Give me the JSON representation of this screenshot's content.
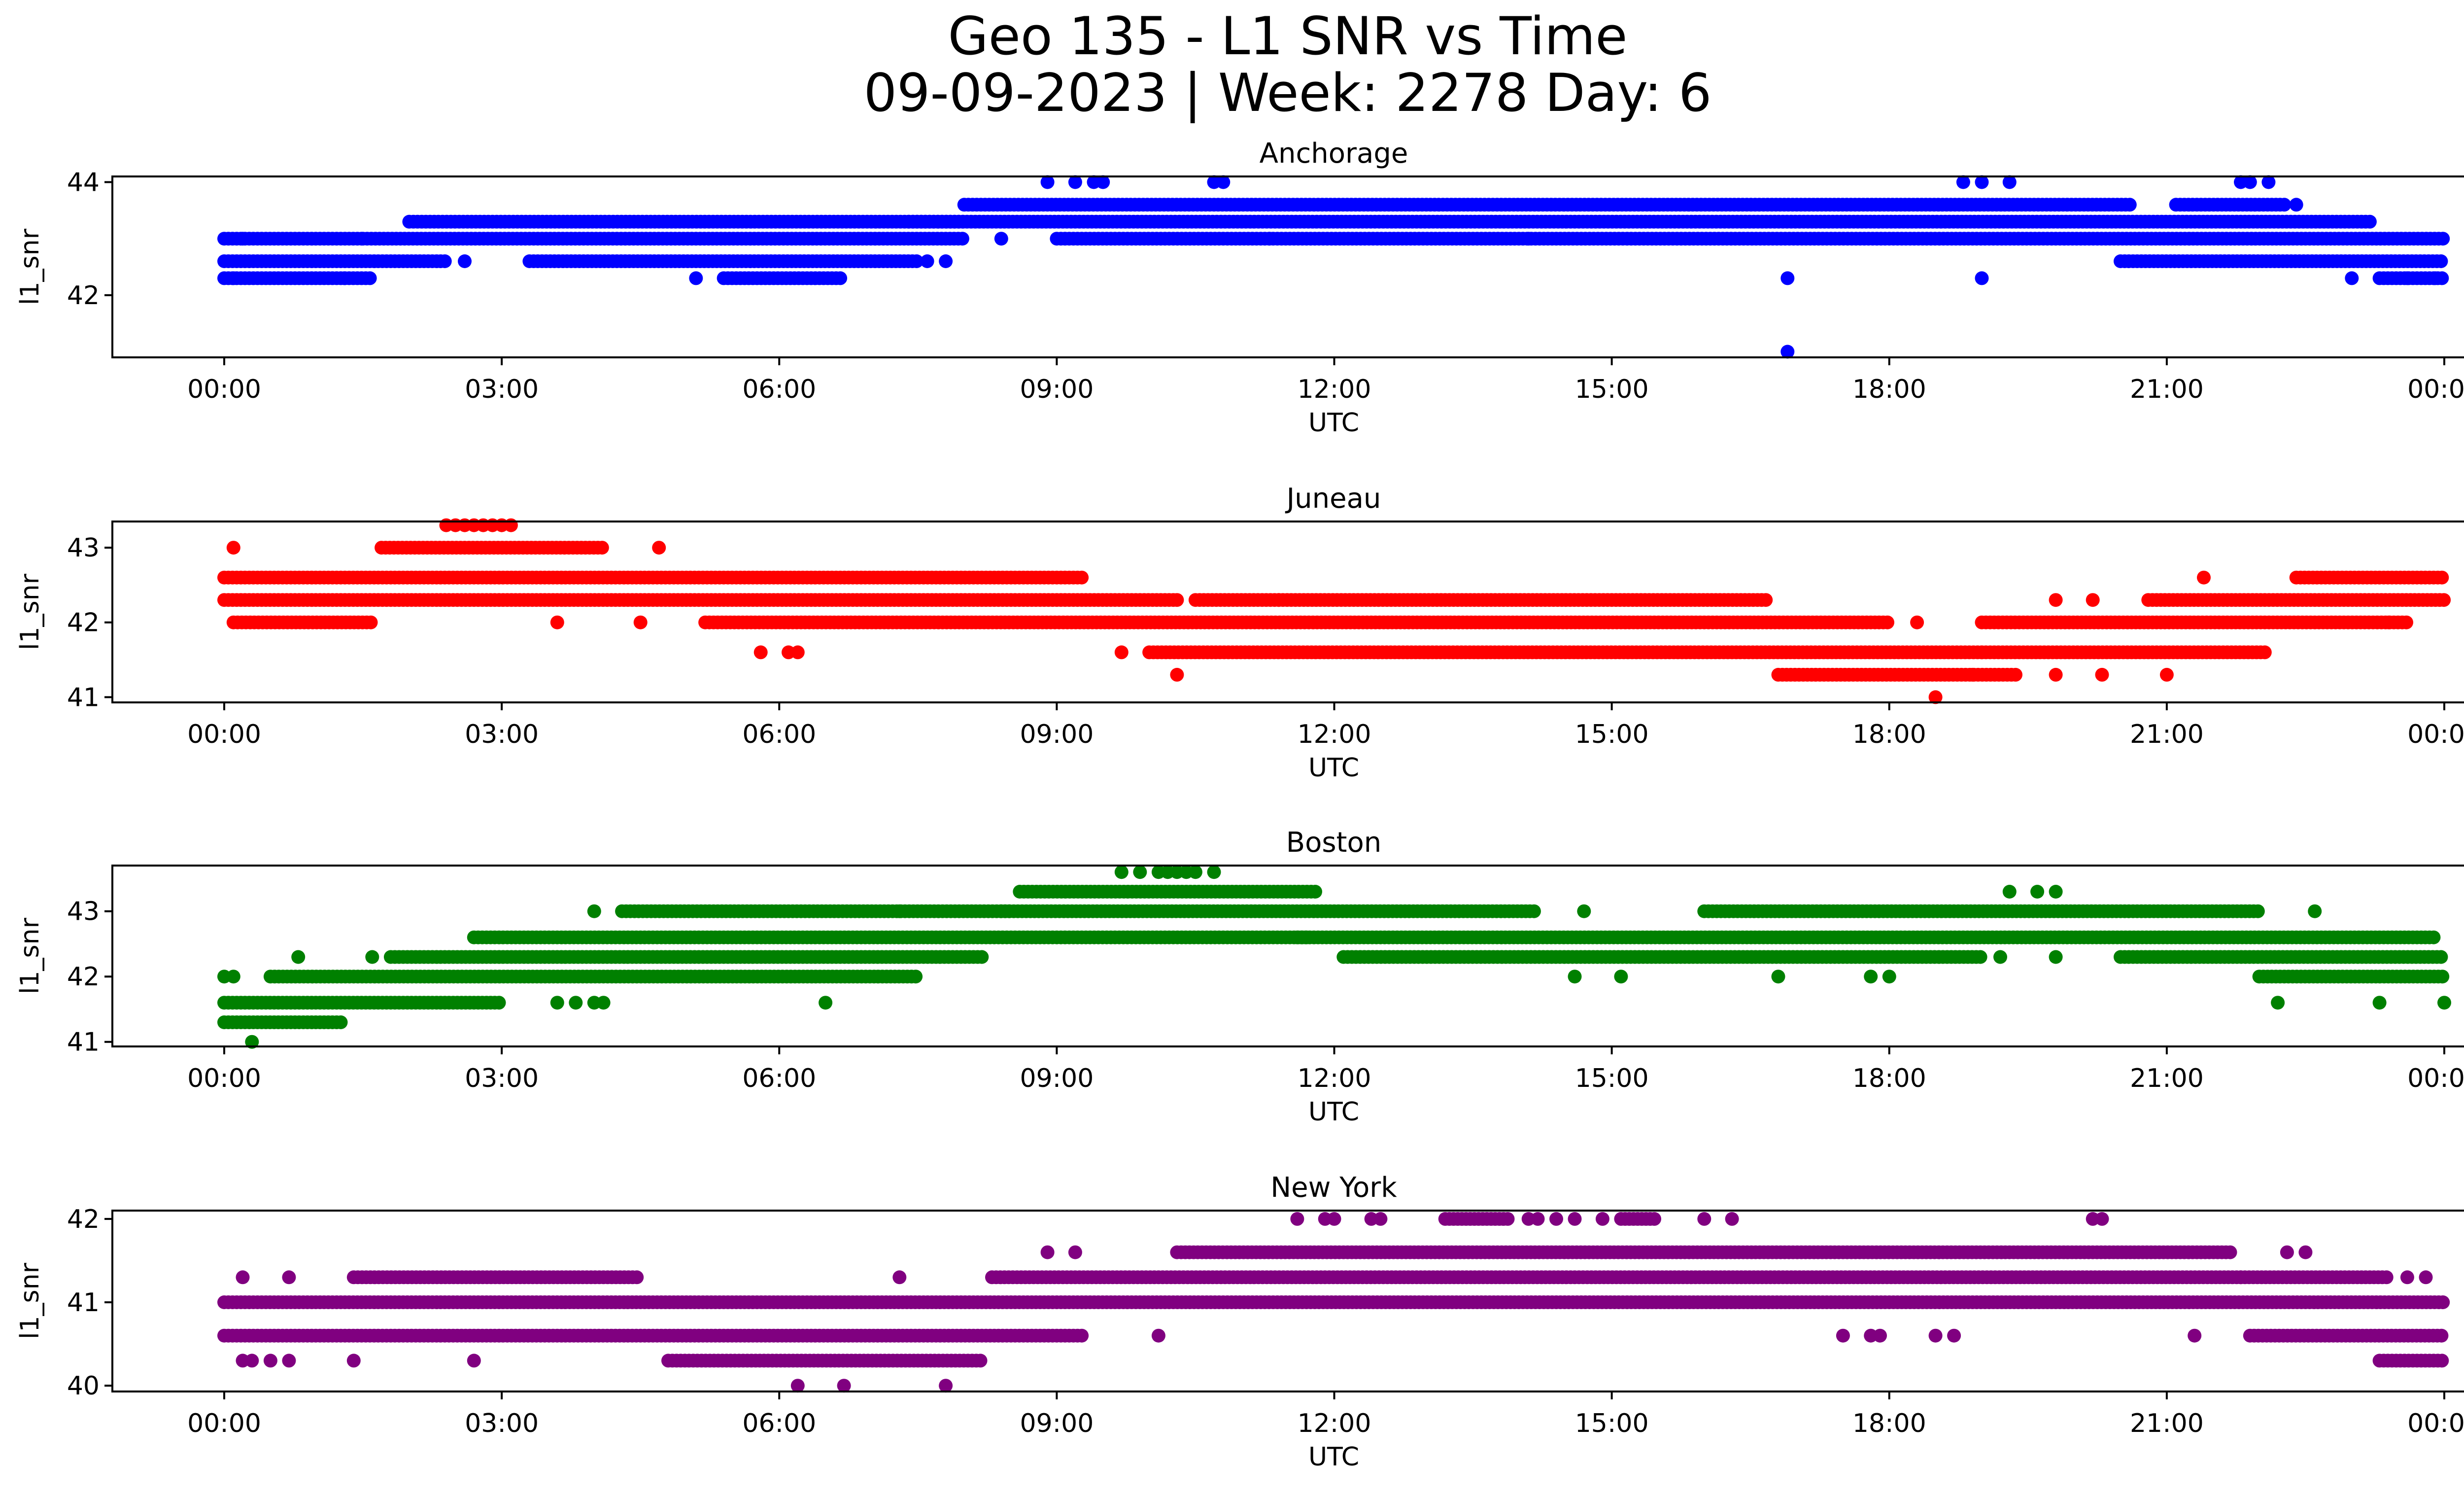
{
  "title_line1": "Geo 135 - L1 SNR vs Time",
  "title_line2": "09-09-2023 | Week: 2278 Day: 6",
  "chart_data": [
    {
      "type": "scatter",
      "title": "Anchorage",
      "xlabel": "UTC",
      "ylabel": "l1_snr",
      "color": "#0000ff",
      "x_unit": "hours UTC",
      "xlim": [
        "00:00",
        "00:00 (next day)"
      ],
      "xticks": [
        "00:00",
        "03:00",
        "06:00",
        "09:00",
        "12:00",
        "15:00",
        "18:00",
        "21:00",
        "00:00"
      ],
      "ylim": [
        40.9,
        44.1
      ],
      "yticks": [
        42,
        44
      ],
      "grid": false,
      "bands": [
        {
          "y": 42.3,
          "from": 0.0,
          "to": 1.6
        },
        {
          "y": 42.6,
          "from": 0.0,
          "to": 2.4
        },
        {
          "y": 43.0,
          "from": 0.0,
          "to": 1.5
        },
        {
          "y": 42.6,
          "from": 3.3,
          "to": 7.5
        },
        {
          "y": 42.3,
          "from": 5.4,
          "to": 6.7
        },
        {
          "y": 43.0,
          "from": 1.5,
          "to": 8.0
        },
        {
          "y": 43.3,
          "from": 2.0,
          "to": 8.0
        },
        {
          "y": 43.6,
          "from": 8.0,
          "to": 20.6
        },
        {
          "y": 43.3,
          "from": 7.4,
          "to": 23.2
        },
        {
          "y": 43.0,
          "from": 9.0,
          "to": 24.0
        },
        {
          "y": 42.6,
          "from": 20.5,
          "to": 24.0
        },
        {
          "y": 42.3,
          "from": 23.3,
          "to": 24.0
        },
        {
          "y": 43.6,
          "from": 21.1,
          "to": 22.3
        }
      ],
      "points": [
        {
          "x": 0.1,
          "y": 42.3
        },
        {
          "x": 0.2,
          "y": 43.0
        },
        {
          "x": 1.3,
          "y": 42.3
        },
        {
          "x": 2.6,
          "y": 42.6
        },
        {
          "x": 5.1,
          "y": 42.3
        },
        {
          "x": 7.6,
          "y": 42.6
        },
        {
          "x": 7.8,
          "y": 42.6
        },
        {
          "x": 8.4,
          "y": 43.0
        },
        {
          "x": 8.9,
          "y": 44.0
        },
        {
          "x": 9.2,
          "y": 44.0
        },
        {
          "x": 9.4,
          "y": 44.0
        },
        {
          "x": 9.5,
          "y": 44.0
        },
        {
          "x": 10.7,
          "y": 44.0
        },
        {
          "x": 10.8,
          "y": 44.0
        },
        {
          "x": 11.3,
          "y": 43.0
        },
        {
          "x": 14.1,
          "y": 43.0
        },
        {
          "x": 16.9,
          "y": 42.3
        },
        {
          "x": 16.9,
          "y": 41.0
        },
        {
          "x": 18.8,
          "y": 44.0
        },
        {
          "x": 19.0,
          "y": 44.0
        },
        {
          "x": 19.3,
          "y": 44.0
        },
        {
          "x": 19.0,
          "y": 42.3
        },
        {
          "x": 21.8,
          "y": 44.0
        },
        {
          "x": 21.9,
          "y": 44.0
        },
        {
          "x": 22.1,
          "y": 44.0
        },
        {
          "x": 22.4,
          "y": 43.6
        },
        {
          "x": 23.0,
          "y": 42.3
        },
        {
          "x": 23.6,
          "y": 42.3
        },
        {
          "x": 23.9,
          "y": 42.3
        }
      ]
    },
    {
      "type": "scatter",
      "title": "Juneau",
      "xlabel": "UTC",
      "ylabel": "l1_snr",
      "color": "#ff0000",
      "x_unit": "hours UTC",
      "xlim": [
        "00:00",
        "00:00 (next day)"
      ],
      "xticks": [
        "00:00",
        "03:00",
        "06:00",
        "09:00",
        "12:00",
        "15:00",
        "18:00",
        "21:00",
        "00:00"
      ],
      "ylim": [
        40.93,
        43.35
      ],
      "yticks": [
        41,
        42,
        43
      ],
      "grid": false,
      "bands": [
        {
          "y": 42.6,
          "from": 0.0,
          "to": 9.3
        },
        {
          "y": 42.3,
          "from": 0.0,
          "to": 10.3
        },
        {
          "y": 42.0,
          "from": 0.1,
          "to": 1.6
        },
        {
          "y": 43.0,
          "from": 1.7,
          "to": 4.1
        },
        {
          "y": 42.3,
          "from": 10.5,
          "to": 16.7
        },
        {
          "y": 42.0,
          "from": 5.2,
          "to": 18.0
        },
        {
          "y": 41.6,
          "from": 10.0,
          "to": 22.1
        },
        {
          "y": 41.3,
          "from": 16.8,
          "to": 19.4
        },
        {
          "y": 42.0,
          "from": 19.0,
          "to": 23.6
        },
        {
          "y": 42.3,
          "from": 20.8,
          "to": 24.0
        },
        {
          "y": 42.6,
          "from": 22.4,
          "to": 24.0
        }
      ],
      "points": [
        {
          "x": 0.1,
          "y": 43.0
        },
        {
          "x": 2.4,
          "y": 43.3
        },
        {
          "x": 2.5,
          "y": 43.3
        },
        {
          "x": 2.6,
          "y": 43.3
        },
        {
          "x": 2.7,
          "y": 43.3
        },
        {
          "x": 2.8,
          "y": 43.3
        },
        {
          "x": 2.9,
          "y": 43.3
        },
        {
          "x": 3.0,
          "y": 43.3
        },
        {
          "x": 3.1,
          "y": 43.3
        },
        {
          "x": 4.7,
          "y": 43.0
        },
        {
          "x": 3.6,
          "y": 42.0
        },
        {
          "x": 4.5,
          "y": 42.0
        },
        {
          "x": 5.8,
          "y": 41.6
        },
        {
          "x": 6.1,
          "y": 41.6
        },
        {
          "x": 6.2,
          "y": 41.6
        },
        {
          "x": 9.7,
          "y": 41.6
        },
        {
          "x": 10.3,
          "y": 41.3
        },
        {
          "x": 10.3,
          "y": 42.3
        },
        {
          "x": 11.4,
          "y": 42.3
        },
        {
          "x": 18.3,
          "y": 42.0
        },
        {
          "x": 18.5,
          "y": 41.0
        },
        {
          "x": 18.9,
          "y": 41.3
        },
        {
          "x": 19.0,
          "y": 41.6
        },
        {
          "x": 19.8,
          "y": 41.3
        },
        {
          "x": 20.3,
          "y": 41.3
        },
        {
          "x": 21.0,
          "y": 41.3
        },
        {
          "x": 21.4,
          "y": 42.6
        },
        {
          "x": 19.8,
          "y": 42.3
        },
        {
          "x": 20.2,
          "y": 42.3
        },
        {
          "x": 23.4,
          "y": 42.0
        }
      ]
    },
    {
      "type": "scatter",
      "title": "Boston",
      "xlabel": "UTC",
      "ylabel": "l1_snr",
      "color": "#008000",
      "x_unit": "hours UTC",
      "xlim": [
        "00:00",
        "00:00 (next day)"
      ],
      "xticks": [
        "00:00",
        "03:00",
        "06:00",
        "09:00",
        "12:00",
        "15:00",
        "18:00",
        "21:00",
        "00:00"
      ],
      "ylim": [
        40.93,
        43.7
      ],
      "yticks": [
        41,
        42,
        43
      ],
      "grid": false,
      "bands": [
        {
          "y": 41.3,
          "from": 0.0,
          "to": 1.3
        },
        {
          "y": 41.6,
          "from": 0.0,
          "to": 3.0
        },
        {
          "y": 42.0,
          "from": 0.5,
          "to": 7.5
        },
        {
          "y": 42.3,
          "from": 1.8,
          "to": 8.2
        },
        {
          "y": 42.6,
          "from": 2.7,
          "to": 11.7
        },
        {
          "y": 43.0,
          "from": 4.3,
          "to": 8.5
        },
        {
          "y": 43.0,
          "from": 8.4,
          "to": 14.2
        },
        {
          "y": 43.3,
          "from": 8.6,
          "to": 11.8
        },
        {
          "y": 42.6,
          "from": 11.6,
          "to": 23.9
        },
        {
          "y": 42.3,
          "from": 12.1,
          "to": 19.0
        },
        {
          "y": 43.0,
          "from": 16.0,
          "to": 22.0
        },
        {
          "y": 42.3,
          "from": 20.5,
          "to": 24.0
        },
        {
          "y": 42.0,
          "from": 22.0,
          "to": 24.0
        }
      ],
      "points": [
        {
          "x": 0.0,
          "y": 42.0
        },
        {
          "x": 0.1,
          "y": 42.0
        },
        {
          "x": 0.3,
          "y": 41.0
        },
        {
          "x": 0.8,
          "y": 42.3
        },
        {
          "x": 1.6,
          "y": 42.3
        },
        {
          "x": 3.6,
          "y": 41.6
        },
        {
          "x": 3.8,
          "y": 41.6
        },
        {
          "x": 4.0,
          "y": 41.6
        },
        {
          "x": 4.1,
          "y": 41.6
        },
        {
          "x": 4.0,
          "y": 43.0
        },
        {
          "x": 6.5,
          "y": 41.6
        },
        {
          "x": 7.3,
          "y": 43.0
        },
        {
          "x": 9.7,
          "y": 43.6
        },
        {
          "x": 9.9,
          "y": 43.6
        },
        {
          "x": 10.1,
          "y": 43.6
        },
        {
          "x": 10.2,
          "y": 43.6
        },
        {
          "x": 10.3,
          "y": 43.6
        },
        {
          "x": 10.4,
          "y": 43.6
        },
        {
          "x": 10.5,
          "y": 43.6
        },
        {
          "x": 10.7,
          "y": 43.6
        },
        {
          "x": 14.6,
          "y": 42.0
        },
        {
          "x": 14.7,
          "y": 43.0
        },
        {
          "x": 15.1,
          "y": 42.0
        },
        {
          "x": 16.8,
          "y": 42.0
        },
        {
          "x": 17.8,
          "y": 42.0
        },
        {
          "x": 18.0,
          "y": 42.0
        },
        {
          "x": 19.3,
          "y": 43.3
        },
        {
          "x": 19.6,
          "y": 43.3
        },
        {
          "x": 19.8,
          "y": 43.3
        },
        {
          "x": 19.2,
          "y": 42.3
        },
        {
          "x": 19.8,
          "y": 42.3
        },
        {
          "x": 22.2,
          "y": 41.6
        },
        {
          "x": 22.6,
          "y": 43.0
        },
        {
          "x": 23.3,
          "y": 41.6
        },
        {
          "x": 24.0,
          "y": 41.6
        }
      ]
    },
    {
      "type": "scatter",
      "title": "New York",
      "xlabel": "UTC",
      "ylabel": "l1_snr",
      "color": "#800080",
      "x_unit": "hours UTC",
      "xlim": [
        "00:00",
        "00:00 (next day)"
      ],
      "xticks": [
        "00:00",
        "03:00",
        "06:00",
        "09:00",
        "12:00",
        "15:00",
        "18:00",
        "21:00",
        "00:00"
      ],
      "ylim": [
        39.93,
        42.1
      ],
      "yticks": [
        40,
        41,
        42
      ],
      "grid": false,
      "bands": [
        {
          "y": 41.0,
          "from": 0.0,
          "to": 24.0
        },
        {
          "y": 40.6,
          "from": 0.0,
          "to": 9.3
        },
        {
          "y": 41.3,
          "from": 1.4,
          "to": 4.5
        },
        {
          "y": 40.3,
          "from": 4.8,
          "to": 8.2
        },
        {
          "y": 41.3,
          "from": 8.3,
          "to": 21.8
        },
        {
          "y": 41.6,
          "from": 10.3,
          "to": 21.7
        },
        {
          "y": 41.3,
          "from": 21.8,
          "to": 23.4
        },
        {
          "y": 40.6,
          "from": 21.9,
          "to": 24.0
        },
        {
          "y": 40.3,
          "from": 23.3,
          "to": 24.0
        },
        {
          "y": 42.0,
          "from": 13.2,
          "to": 13.9
        },
        {
          "y": 42.0,
          "from": 15.1,
          "to": 15.5
        }
      ],
      "points": [
        {
          "x": 0.2,
          "y": 40.3
        },
        {
          "x": 0.3,
          "y": 40.3
        },
        {
          "x": 0.5,
          "y": 40.3
        },
        {
          "x": 0.7,
          "y": 40.3
        },
        {
          "x": 0.2,
          "y": 41.3
        },
        {
          "x": 0.7,
          "y": 41.3
        },
        {
          "x": 1.4,
          "y": 40.3
        },
        {
          "x": 2.7,
          "y": 40.3
        },
        {
          "x": 7.3,
          "y": 41.3
        },
        {
          "x": 6.2,
          "y": 40.0
        },
        {
          "x": 6.7,
          "y": 40.0
        },
        {
          "x": 7.8,
          "y": 40.0
        },
        {
          "x": 8.9,
          "y": 41.6
        },
        {
          "x": 9.2,
          "y": 41.6
        },
        {
          "x": 10.1,
          "y": 40.6
        },
        {
          "x": 11.6,
          "y": 42.0
        },
        {
          "x": 11.9,
          "y": 42.0
        },
        {
          "x": 12.0,
          "y": 42.0
        },
        {
          "x": 12.4,
          "y": 42.0
        },
        {
          "x": 12.5,
          "y": 42.0
        },
        {
          "x": 14.2,
          "y": 42.0
        },
        {
          "x": 14.4,
          "y": 42.0
        },
        {
          "x": 14.6,
          "y": 42.0
        },
        {
          "x": 14.9,
          "y": 42.0
        },
        {
          "x": 16.0,
          "y": 42.0
        },
        {
          "x": 16.3,
          "y": 42.0
        },
        {
          "x": 14.1,
          "y": 42.0
        },
        {
          "x": 17.5,
          "y": 40.6
        },
        {
          "x": 17.8,
          "y": 40.6
        },
        {
          "x": 17.9,
          "y": 40.6
        },
        {
          "x": 18.5,
          "y": 40.6
        },
        {
          "x": 18.7,
          "y": 40.6
        },
        {
          "x": 20.2,
          "y": 42.0
        },
        {
          "x": 20.3,
          "y": 42.0
        },
        {
          "x": 21.3,
          "y": 40.6
        },
        {
          "x": 22.3,
          "y": 41.6
        },
        {
          "x": 22.5,
          "y": 41.6
        },
        {
          "x": 23.8,
          "y": 41.3
        },
        {
          "x": 23.6,
          "y": 41.3
        }
      ]
    }
  ]
}
